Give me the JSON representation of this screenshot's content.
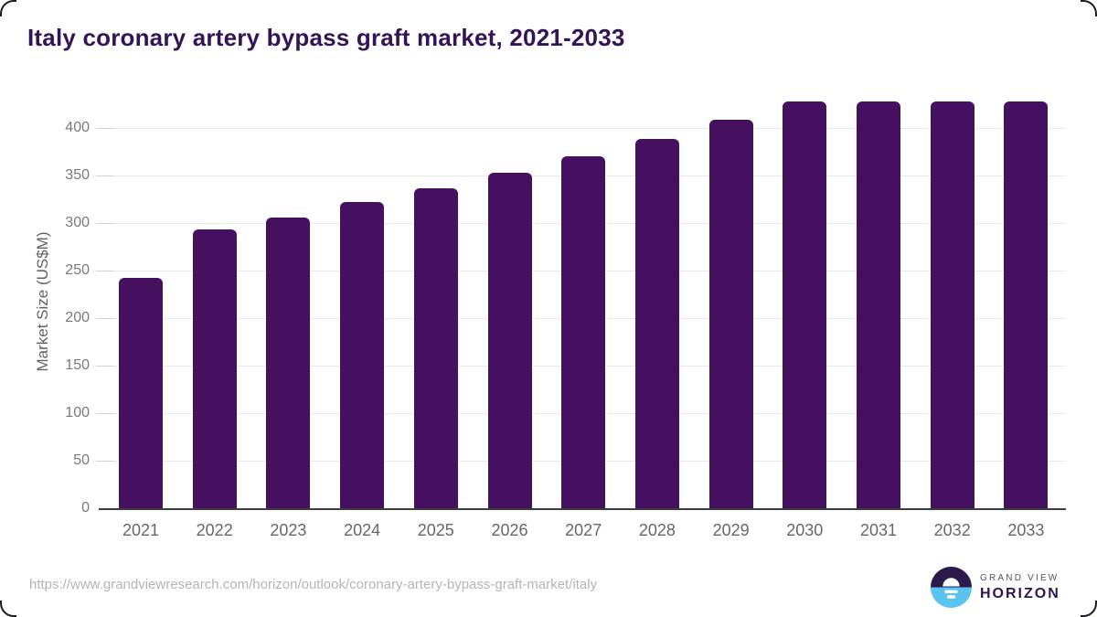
{
  "title": "Italy coronary artery bypass graft market, 2021-2033",
  "chart_data": {
    "type": "bar",
    "categories": [
      "2021",
      "2022",
      "2023",
      "2024",
      "2025",
      "2026",
      "2027",
      "2028",
      "2029",
      "2030",
      "2031",
      "2032",
      "2033"
    ],
    "values": [
      242,
      293,
      306,
      322,
      337,
      353,
      370,
      388,
      409,
      428,
      428,
      428,
      428
    ],
    "title": "Italy coronary artery bypass graft market, 2021-2033",
    "xlabel": "",
    "ylabel": "Market Size (US$M)",
    "ylim": [
      0,
      435
    ],
    "yticks": [
      0,
      50,
      100,
      150,
      200,
      250,
      300,
      350,
      400
    ],
    "bar_color": "#45105f",
    "grid": "horizontal gridlines only",
    "legend": "none"
  },
  "footer": {
    "source_url": "https://www.grandviewresearch.com/horizon/outlook/coronary-artery-bypass-graft-market/italy",
    "logo": {
      "line1": "GRAND VIEW",
      "line2": "HORIZON"
    }
  },
  "colors": {
    "bar": "#45105f",
    "title_text": "#331457",
    "axis_label_text": "#616161",
    "tick_text": "#787878",
    "gridline": "#e9e9e9",
    "axis_line": "#3e3e3e",
    "url_text": "#b5b5b5",
    "logo_dark_half": "#2b1a4a",
    "logo_blue_half": "#5bc3ef"
  }
}
